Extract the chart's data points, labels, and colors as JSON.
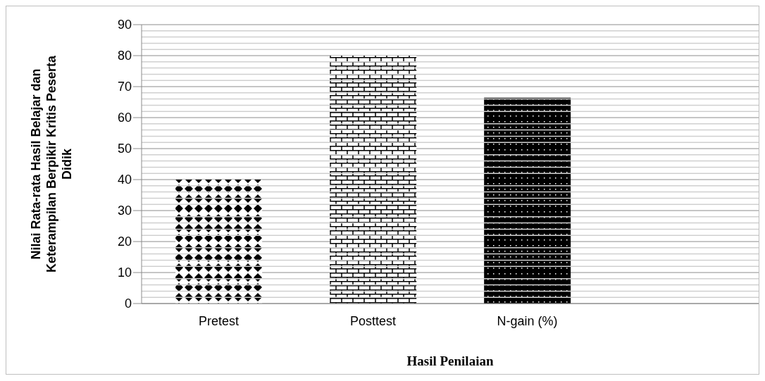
{
  "chart_data": {
    "type": "bar",
    "xlabel": "Hasil Penilaian",
    "ylabel": "Nilai Rata-rata Hasil Belajar dan Keterampilan Berpikir Kritis Peserta Didik",
    "categories": [
      "Pretest",
      "Posttest",
      "N-gain (%)",
      null
    ],
    "values": [
      40,
      80,
      66.4,
      null
    ],
    "colors": [
      "#000000",
      "#000000",
      "#000000",
      "#000000"
    ],
    "ylim": [
      0,
      90
    ],
    "yticks": [
      0,
      10,
      20,
      30,
      40,
      50,
      60,
      70,
      80,
      90
    ],
    "grid": "y"
  }
}
